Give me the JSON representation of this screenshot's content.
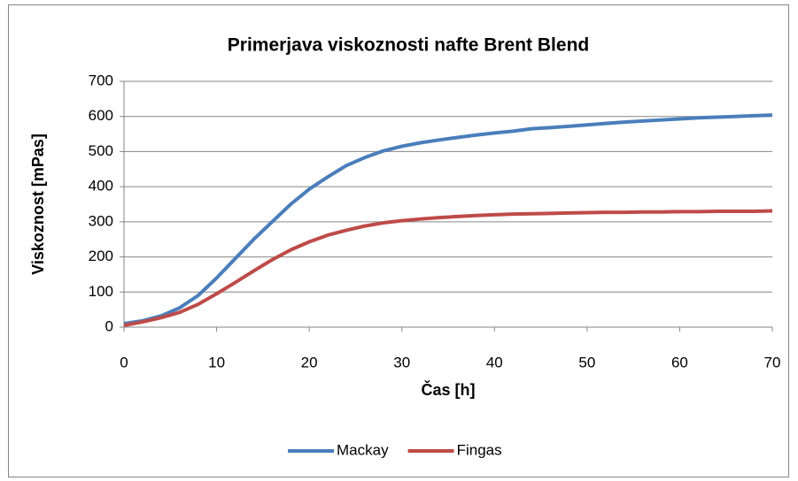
{
  "chart_data": {
    "type": "line",
    "title": "Primerjava viskoznosti nafte Brent Blend",
    "xlabel": "Čas [h]",
    "ylabel": "Viskoznost [mPas]",
    "x": [
      0,
      2,
      4,
      6,
      8,
      10,
      12,
      14,
      16,
      18,
      20,
      22,
      24,
      26,
      28,
      30,
      32,
      34,
      36,
      38,
      40,
      42,
      44,
      46,
      48,
      50,
      52,
      54,
      56,
      58,
      60,
      62,
      64,
      66,
      68,
      70
    ],
    "series": [
      {
        "name": "Mackay",
        "color": "#4a7ebb",
        "values": [
          10,
          18,
          32,
          55,
          90,
          140,
          195,
          250,
          300,
          350,
          393,
          428,
          460,
          483,
          502,
          515,
          525,
          533,
          540,
          547,
          553,
          558,
          565,
          568,
          572,
          576,
          580,
          584,
          587,
          590,
          593,
          596,
          598,
          600,
          602,
          604
        ]
      },
      {
        "name": "Fingas",
        "color": "#be4b48",
        "values": [
          5,
          15,
          27,
          42,
          65,
          95,
          127,
          160,
          192,
          220,
          243,
          262,
          276,
          288,
          297,
          303,
          308,
          312,
          315,
          318,
          320,
          322,
          323,
          324,
          325,
          326,
          327,
          327,
          328,
          328,
          329,
          329,
          330,
          330,
          330,
          331
        ]
      }
    ],
    "xlim": [
      0,
      70
    ],
    "xticks": [
      0,
      10,
      20,
      30,
      40,
      50,
      60,
      70
    ],
    "ylim": [
      0,
      700
    ],
    "yticks": [
      0,
      100,
      200,
      300,
      400,
      500,
      600,
      700
    ],
    "grid": true,
    "legend": "bottom"
  }
}
